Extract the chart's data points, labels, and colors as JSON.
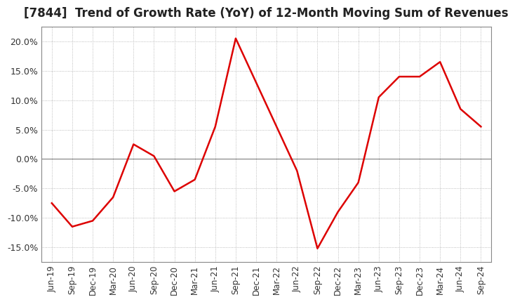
{
  "title": "[7844]  Trend of Growth Rate (YoY) of 12-Month Moving Sum of Revenues",
  "title_fontsize": 12,
  "ylim": [
    -0.175,
    0.225
  ],
  "yticks": [
    -0.15,
    -0.1,
    -0.05,
    0.0,
    0.05,
    0.1,
    0.15,
    0.2
  ],
  "line_color": "#dd0000",
  "background_color": "#ffffff",
  "grid_color": "#aaaaaa",
  "zero_line_color": "#888888",
  "spine_color": "#888888",
  "dates": [
    "Jun-19",
    "Sep-19",
    "Dec-19",
    "Mar-20",
    "Jun-20",
    "Sep-20",
    "Dec-20",
    "Mar-21",
    "Jun-21",
    "Sep-21",
    "Dec-21",
    "Mar-22",
    "Jun-22",
    "Sep-22",
    "Dec-22",
    "Mar-23",
    "Jun-23",
    "Sep-23",
    "Dec-23",
    "Mar-24",
    "Jun-24",
    "Sep-24"
  ],
  "values": [
    -0.075,
    -0.115,
    -0.105,
    -0.065,
    0.025,
    0.005,
    -0.055,
    -0.035,
    0.055,
    0.205,
    0.13,
    0.055,
    -0.02,
    -0.152,
    -0.09,
    -0.04,
    0.105,
    0.14,
    0.14,
    0.165,
    0.085,
    0.055
  ]
}
